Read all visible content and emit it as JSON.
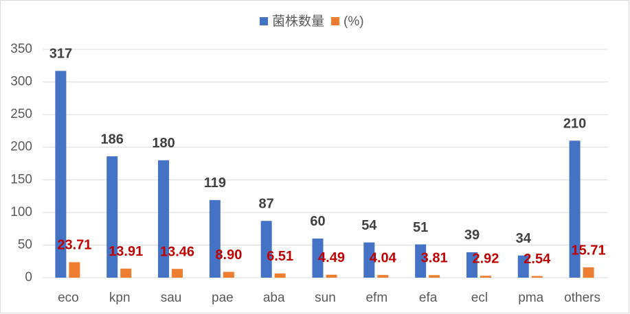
{
  "chart_data": {
    "type": "bar",
    "categories": [
      "eco",
      "kpn",
      "sau",
      "pae",
      "aba",
      "sun",
      "efm",
      "efa",
      "ecl",
      "pma",
      "others"
    ],
    "series": [
      {
        "name": "菌株数量",
        "color": "#4472c4",
        "label_color": "#404040",
        "values": [
          317,
          186,
          180,
          119,
          87,
          60,
          54,
          51,
          39,
          34,
          210
        ]
      },
      {
        "name": "(%)",
        "color": "#ed7d31",
        "label_color": "#c00000",
        "values": [
          23.71,
          13.91,
          13.46,
          8.9,
          6.51,
          4.49,
          4.04,
          3.81,
          2.92,
          2.54,
          15.71
        ],
        "value_labels": [
          "23.71",
          "13.91",
          "13.46",
          "8.90",
          "6.51",
          "4.49",
          "4.04",
          "3.81",
          "2.92",
          "2.54",
          "15.71"
        ]
      }
    ],
    "ylim": [
      0,
      350
    ],
    "yticks": [
      0,
      50,
      100,
      150,
      200,
      250,
      300,
      350
    ],
    "grid": true,
    "legend": "top"
  }
}
